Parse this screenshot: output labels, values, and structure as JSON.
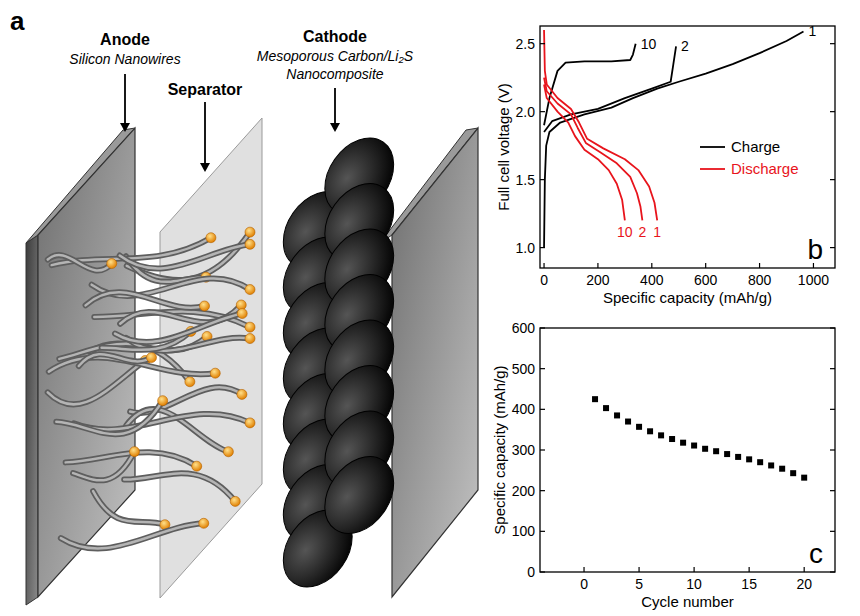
{
  "diagram": {
    "letter": "a",
    "anode": {
      "title": "Anode",
      "subtitle": [
        "Silicon Nanowires"
      ]
    },
    "separator": {
      "title": "Separator"
    },
    "cathode": {
      "title": "Cathode",
      "subtitle": [
        "Mesoporous Carbon/Li₂S",
        "Nanocomposite"
      ]
    }
  },
  "chart_data": [
    {
      "type": "line",
      "x_label": "Specific capacity (mAh/g)",
      "y_label": "Full cell voltage (V)",
      "xlim": [
        -15,
        1080
      ],
      "ylim": [
        0.85,
        2.63
      ],
      "xticks": [
        0,
        200,
        400,
        600,
        800,
        1000
      ],
      "yticks": [
        {
          "value": 1.0,
          "label": "1.0"
        },
        {
          "value": 1.5,
          "label": "1.5"
        },
        {
          "value": 2.0,
          "label": "2.0"
        },
        {
          "value": 2.5,
          "label": "2.5"
        }
      ],
      "grid": false,
      "legend": "right",
      "annotations": [
        "b"
      ],
      "series": [
        {
          "name": "Charge",
          "label": "1",
          "color": "#000000",
          "x": [
            0,
            3,
            8,
            20,
            60,
            150,
            250,
            330,
            420,
            500,
            600,
            700,
            800,
            900,
            963
          ],
          "values": [
            1.0,
            1.5,
            1.75,
            1.85,
            1.92,
            1.98,
            2.03,
            2.1,
            2.17,
            2.22,
            2.28,
            2.35,
            2.43,
            2.52,
            2.59
          ]
        },
        {
          "name": "Charge",
          "label": "2",
          "color": "#000000",
          "x": [
            0,
            30,
            100,
            200,
            300,
            400,
            470,
            480,
            490
          ],
          "values": [
            1.85,
            1.93,
            1.98,
            2.02,
            2.1,
            2.17,
            2.22,
            2.35,
            2.48
          ]
        },
        {
          "name": "Charge",
          "label": "10",
          "color": "#000000",
          "x": [
            0,
            20,
            50,
            80,
            150,
            250,
            320,
            330,
            340
          ],
          "values": [
            1.9,
            2.1,
            2.3,
            2.36,
            2.37,
            2.37,
            2.38,
            2.42,
            2.5
          ]
        },
        {
          "name": "Discharge",
          "label": "1",
          "color": "#e8141c",
          "x": [
            0,
            3,
            10,
            50,
            100,
            130,
            160,
            220,
            300,
            350,
            390,
            410,
            420
          ],
          "values": [
            2.6,
            2.3,
            2.2,
            2.1,
            2.02,
            1.92,
            1.8,
            1.73,
            1.65,
            1.57,
            1.45,
            1.33,
            1.2
          ]
        },
        {
          "name": "Discharge",
          "label": "2",
          "color": "#e8141c",
          "x": [
            0,
            10,
            50,
            100,
            125,
            155,
            210,
            270,
            320,
            345,
            358,
            365
          ],
          "values": [
            2.25,
            2.15,
            2.06,
            1.98,
            1.88,
            1.77,
            1.7,
            1.62,
            1.52,
            1.4,
            1.3,
            1.2
          ]
        },
        {
          "name": "Discharge",
          "label": "10",
          "color": "#e8141c",
          "x": [
            0,
            10,
            50,
            90,
            115,
            150,
            200,
            240,
            270,
            290,
            300
          ],
          "values": [
            2.2,
            2.1,
            2.0,
            1.92,
            1.82,
            1.72,
            1.65,
            1.57,
            1.47,
            1.35,
            1.2
          ]
        }
      ]
    },
    {
      "type": "scatter",
      "x_label": "Cycle number",
      "y_label": "Specific capacity (mAh/g)",
      "xlim": [
        -4,
        22.8
      ],
      "ylim": [
        0,
        600
      ],
      "xticks": [
        0,
        5,
        10,
        15,
        20
      ],
      "yticks": [
        0,
        100,
        200,
        300,
        400,
        500,
        600
      ],
      "grid": false,
      "annotations": [
        "c"
      ],
      "series": [
        {
          "color": "#000000",
          "marker": "square",
          "x": [
            1,
            2,
            3,
            4,
            5,
            6,
            7,
            8,
            9,
            10,
            11,
            12,
            13,
            14,
            15,
            16,
            17,
            18,
            19,
            20
          ],
          "values": [
            425,
            403,
            385,
            370,
            357,
            346,
            336,
            327,
            318,
            311,
            303,
            297,
            290,
            283,
            277,
            270,
            262,
            254,
            243,
            232
          ]
        }
      ]
    }
  ]
}
